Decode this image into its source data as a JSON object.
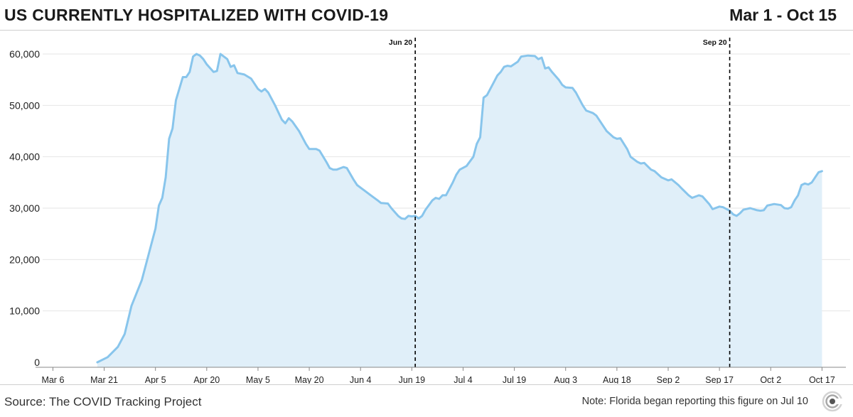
{
  "header": {
    "title": "US CURRENTLY HOSPITALIZED WITH COVID-19",
    "date_range": "Mar 1 - Oct 15"
  },
  "footer": {
    "source": "Source: The COVID Tracking Project",
    "note": "Note: Florida began reporting this figure on Jul 10"
  },
  "colors": {
    "line": "#88c5ec",
    "fill": "#e0eff9",
    "grid": "#e6e6e6",
    "annotation": "#000000"
  },
  "logo_icon": "covid-tracking-project-logo-icon",
  "chart_data": {
    "type": "area",
    "title": "US CURRENTLY HOSPITALIZED WITH COVID-19",
    "xlabel": "",
    "ylabel": "",
    "grid": true,
    "ylim": [
      0,
      60000
    ],
    "xlim": [
      "2020-03-03",
      "2020-10-19"
    ],
    "y_ticks": [
      0,
      10000,
      20000,
      30000,
      40000,
      50000,
      60000
    ],
    "y_tick_labels": [
      "0",
      "10,000",
      "20,000",
      "30,000",
      "40,000",
      "50,000",
      "60,000"
    ],
    "x_ticks": [
      "2020-03-06",
      "2020-03-21",
      "2020-04-05",
      "2020-04-20",
      "2020-05-05",
      "2020-05-20",
      "2020-06-04",
      "2020-06-19",
      "2020-07-04",
      "2020-07-19",
      "2020-08-03",
      "2020-08-18",
      "2020-09-02",
      "2020-09-17",
      "2020-10-02",
      "2020-10-17"
    ],
    "x_tick_labels": [
      "Mar 6",
      "Mar 21",
      "Apr 5",
      "Apr 20",
      "May 5",
      "May 20",
      "Jun 4",
      "Jun 19",
      "Jul 4",
      "Jul 19",
      "Aug 3",
      "Aug 18",
      "Sep 2",
      "Sep 17",
      "Oct 2",
      "Oct 17"
    ],
    "annotations": [
      {
        "x": "2020-06-20",
        "label": "Jun 20"
      },
      {
        "x": "2020-09-20",
        "label": "Sep 20"
      }
    ],
    "series": [
      {
        "points": [
          [
            "2020-03-19",
            0
          ],
          [
            "2020-03-22",
            1000
          ],
          [
            "2020-03-25",
            3000
          ],
          [
            "2020-03-27",
            5500
          ],
          [
            "2020-03-29",
            11000
          ],
          [
            "2020-04-01",
            16000
          ],
          [
            "2020-04-03",
            21000
          ],
          [
            "2020-04-05",
            26000
          ],
          [
            "2020-04-06",
            30500
          ],
          [
            "2020-04-07",
            32000
          ],
          [
            "2020-04-08",
            36000
          ],
          [
            "2020-04-09",
            43500
          ],
          [
            "2020-04-10",
            45500
          ],
          [
            "2020-04-11",
            51000
          ],
          [
            "2020-04-13",
            55500
          ],
          [
            "2020-04-14",
            55500
          ],
          [
            "2020-04-15",
            56500
          ],
          [
            "2020-04-16",
            59500
          ],
          [
            "2020-04-17",
            60000
          ],
          [
            "2020-04-18",
            59700
          ],
          [
            "2020-04-19",
            59000
          ],
          [
            "2020-04-20",
            58000
          ],
          [
            "2020-04-22",
            56500
          ],
          [
            "2020-04-23",
            56700
          ],
          [
            "2020-04-24",
            60000
          ],
          [
            "2020-04-25",
            59500
          ],
          [
            "2020-04-26",
            59000
          ],
          [
            "2020-04-27",
            57500
          ],
          [
            "2020-04-28",
            57800
          ],
          [
            "2020-04-29",
            56300
          ],
          [
            "2020-05-01",
            56000
          ],
          [
            "2020-05-03",
            55200
          ],
          [
            "2020-05-05",
            53200
          ],
          [
            "2020-05-06",
            52700
          ],
          [
            "2020-05-07",
            53200
          ],
          [
            "2020-05-08",
            52500
          ],
          [
            "2020-05-10",
            50000
          ],
          [
            "2020-05-12",
            47200
          ],
          [
            "2020-05-13",
            46500
          ],
          [
            "2020-05-14",
            47500
          ],
          [
            "2020-05-15",
            46900
          ],
          [
            "2020-05-17",
            45000
          ],
          [
            "2020-05-19",
            42500
          ],
          [
            "2020-05-20",
            41500
          ],
          [
            "2020-05-22",
            41500
          ],
          [
            "2020-05-23",
            41200
          ],
          [
            "2020-05-25",
            39000
          ],
          [
            "2020-05-26",
            37800
          ],
          [
            "2020-05-27",
            37500
          ],
          [
            "2020-05-28",
            37500
          ],
          [
            "2020-05-30",
            38000
          ],
          [
            "2020-05-31",
            37800
          ],
          [
            "2020-06-02",
            35500
          ],
          [
            "2020-06-03",
            34500
          ],
          [
            "2020-06-05",
            33500
          ],
          [
            "2020-06-07",
            32500
          ],
          [
            "2020-06-09",
            31500
          ],
          [
            "2020-06-10",
            31000
          ],
          [
            "2020-06-12",
            30900
          ],
          [
            "2020-06-13",
            30000
          ],
          [
            "2020-06-15",
            28500
          ],
          [
            "2020-06-16",
            28000
          ],
          [
            "2020-06-17",
            27900
          ],
          [
            "2020-06-18",
            28500
          ],
          [
            "2020-06-19",
            28400
          ],
          [
            "2020-06-20",
            28500
          ],
          [
            "2020-06-21",
            28000
          ],
          [
            "2020-06-22",
            28500
          ],
          [
            "2020-06-23",
            29700
          ],
          [
            "2020-06-25",
            31500
          ],
          [
            "2020-06-26",
            32000
          ],
          [
            "2020-06-27",
            31800
          ],
          [
            "2020-06-28",
            32500
          ],
          [
            "2020-06-29",
            32500
          ],
          [
            "2020-07-01",
            35000
          ],
          [
            "2020-07-02",
            36500
          ],
          [
            "2020-07-03",
            37500
          ],
          [
            "2020-07-05",
            38200
          ],
          [
            "2020-07-07",
            40000
          ],
          [
            "2020-07-08",
            42500
          ],
          [
            "2020-07-09",
            43800
          ],
          [
            "2020-07-10",
            51500
          ],
          [
            "2020-07-11",
            52000
          ],
          [
            "2020-07-13",
            54500
          ],
          [
            "2020-07-14",
            55800
          ],
          [
            "2020-07-15",
            56500
          ],
          [
            "2020-07-16",
            57500
          ],
          [
            "2020-07-17",
            57700
          ],
          [
            "2020-07-18",
            57600
          ],
          [
            "2020-07-20",
            58500
          ],
          [
            "2020-07-21",
            59500
          ],
          [
            "2020-07-23",
            59700
          ],
          [
            "2020-07-25",
            59600
          ],
          [
            "2020-07-26",
            59000
          ],
          [
            "2020-07-27",
            59300
          ],
          [
            "2020-07-28",
            57200
          ],
          [
            "2020-07-29",
            57400
          ],
          [
            "2020-07-30",
            56500
          ],
          [
            "2020-08-01",
            55000
          ],
          [
            "2020-08-02",
            54000
          ],
          [
            "2020-08-03",
            53500
          ],
          [
            "2020-08-05",
            53400
          ],
          [
            "2020-08-06",
            52500
          ],
          [
            "2020-08-08",
            50000
          ],
          [
            "2020-08-09",
            49000
          ],
          [
            "2020-08-11",
            48500
          ],
          [
            "2020-08-12",
            48000
          ],
          [
            "2020-08-14",
            46000
          ],
          [
            "2020-08-15",
            45000
          ],
          [
            "2020-08-17",
            43800
          ],
          [
            "2020-08-18",
            43500
          ],
          [
            "2020-08-19",
            43600
          ],
          [
            "2020-08-21",
            41500
          ],
          [
            "2020-08-22",
            40000
          ],
          [
            "2020-08-24",
            39000
          ],
          [
            "2020-08-25",
            38700
          ],
          [
            "2020-08-26",
            38800
          ],
          [
            "2020-08-28",
            37500
          ],
          [
            "2020-08-29",
            37200
          ],
          [
            "2020-08-31",
            36000
          ],
          [
            "2020-09-02",
            35400
          ],
          [
            "2020-09-03",
            35600
          ],
          [
            "2020-09-05",
            34500
          ],
          [
            "2020-09-06",
            33800
          ],
          [
            "2020-09-08",
            32500
          ],
          [
            "2020-09-09",
            32000
          ],
          [
            "2020-09-11",
            32500
          ],
          [
            "2020-09-12",
            32300
          ],
          [
            "2020-09-14",
            30800
          ],
          [
            "2020-09-15",
            29800
          ],
          [
            "2020-09-17",
            30300
          ],
          [
            "2020-09-18",
            30200
          ],
          [
            "2020-09-20",
            29500
          ],
          [
            "2020-09-21",
            28800
          ],
          [
            "2020-09-22",
            28500
          ],
          [
            "2020-09-23",
            29000
          ],
          [
            "2020-09-24",
            29700
          ],
          [
            "2020-09-26",
            30000
          ],
          [
            "2020-09-28",
            29600
          ],
          [
            "2020-09-29",
            29500
          ],
          [
            "2020-09-30",
            29600
          ],
          [
            "2020-10-01",
            30500
          ],
          [
            "2020-10-03",
            30800
          ],
          [
            "2020-10-05",
            30600
          ],
          [
            "2020-10-06",
            30000
          ],
          [
            "2020-10-07",
            29900
          ],
          [
            "2020-10-08",
            30200
          ],
          [
            "2020-10-09",
            31500
          ],
          [
            "2020-10-10",
            32500
          ],
          [
            "2020-10-11",
            34500
          ],
          [
            "2020-10-12",
            34800
          ],
          [
            "2020-10-13",
            34600
          ],
          [
            "2020-10-14",
            35000
          ],
          [
            "2020-10-15",
            36000
          ],
          [
            "2020-10-16",
            37000
          ],
          [
            "2020-10-17",
            37200
          ]
        ]
      }
    ]
  }
}
